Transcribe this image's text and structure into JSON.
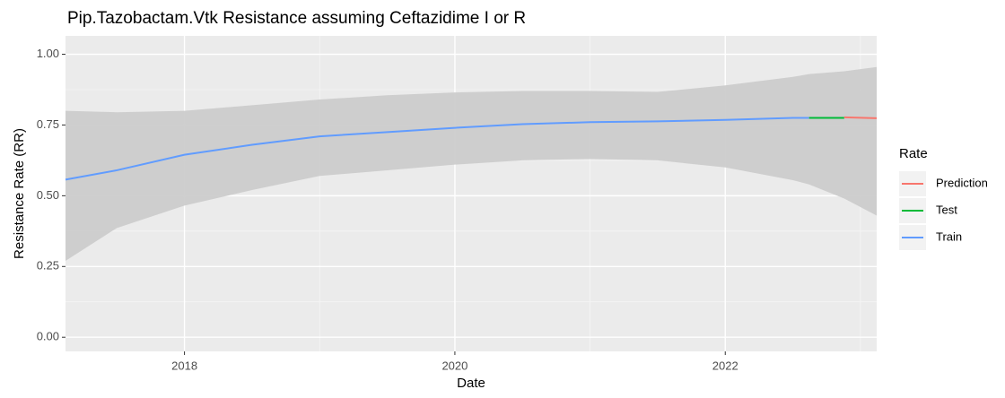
{
  "chart_data": {
    "type": "line",
    "title": "Pip.Tazobactam.Vtk  Resistance assuming  Ceftazidime I or R",
    "x_label": "Date",
    "y_label": "Resistance Rate (RR)",
    "legend_title": "Rate",
    "legend": "right",
    "grid": true,
    "background": "#ebebeb",
    "xlim": [
      2017.12,
      2023.12
    ],
    "xticks": [
      2018,
      2020,
      2022
    ],
    "ylim": [
      -0.05,
      1.065
    ],
    "yticks": [
      {
        "value": 0,
        "label": "0.00"
      },
      {
        "value": 0.25,
        "label": "0.25"
      },
      {
        "value": 0.5,
        "label": "0.50"
      },
      {
        "value": 0.75,
        "label": "0.75"
      },
      {
        "value": 1,
        "label": "1.00"
      }
    ],
    "ribbon": {
      "color": "#cccccc",
      "x": [
        2017.12,
        2017.5,
        2018,
        2018.5,
        2019,
        2019.5,
        2020,
        2020.5,
        2021,
        2021.5,
        2022,
        2022.5,
        2022.62,
        2022.88,
        2023.12
      ],
      "upper": [
        0.8,
        0.795,
        0.8,
        0.82,
        0.84,
        0.855,
        0.865,
        0.87,
        0.87,
        0.867,
        0.89,
        0.92,
        0.93,
        0.94,
        0.955
      ],
      "lower": [
        0.27,
        0.386,
        0.465,
        0.52,
        0.57,
        0.59,
        0.61,
        0.625,
        0.63,
        0.625,
        0.6,
        0.555,
        0.54,
        0.49,
        0.43
      ]
    },
    "series": [
      {
        "name": "Prediction",
        "color": "#F8766D",
        "x": [
          2022.88,
          2023.12
        ],
        "values": [
          0.777,
          0.774
        ]
      },
      {
        "name": "Test",
        "color": "#00BA38",
        "x": [
          2022.62,
          2022.88
        ],
        "values": [
          0.775,
          0.775
        ]
      },
      {
        "name": "Train",
        "color": "#619CFF",
        "x": [
          2017.12,
          2017.5,
          2018,
          2018.5,
          2019,
          2019.5,
          2020,
          2020.5,
          2021,
          2021.5,
          2022,
          2022.5,
          2022.62
        ],
        "values": [
          0.557,
          0.59,
          0.645,
          0.68,
          0.71,
          0.725,
          0.74,
          0.753,
          0.76,
          0.763,
          0.768,
          0.775,
          0.775
        ]
      }
    ]
  }
}
